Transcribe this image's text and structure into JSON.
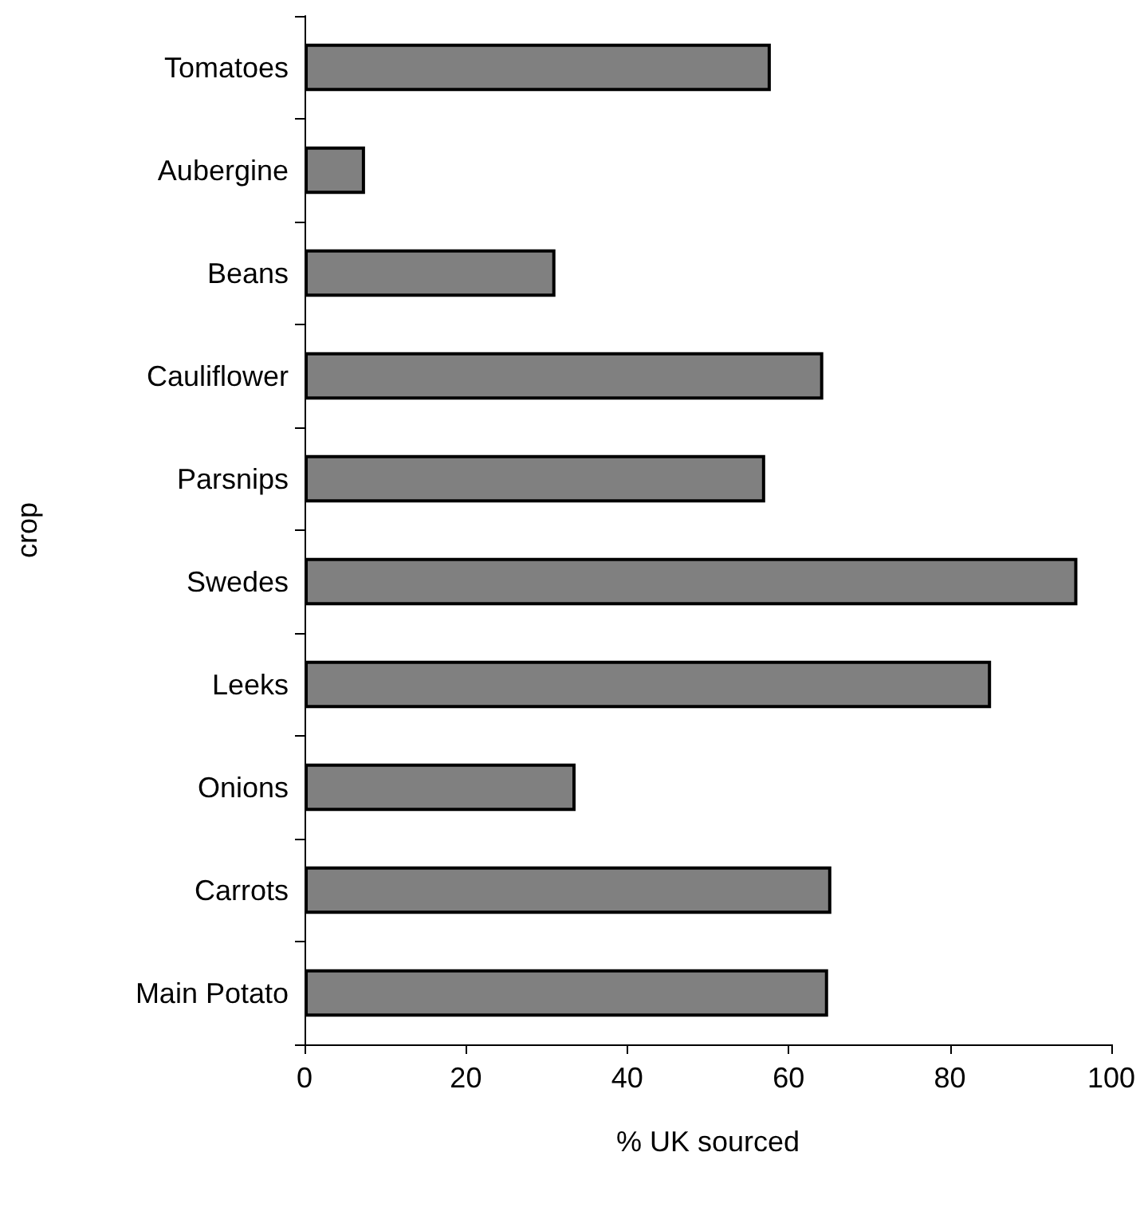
{
  "chart_data": {
    "type": "bar",
    "orientation": "horizontal",
    "xlabel": "% UK sourced",
    "ylabel": "crop",
    "categories": [
      "Tomatoes",
      "Aubergine",
      "Beans",
      "Cauliflower",
      "Parsnips",
      "Swedes",
      "Leeks",
      "Onions",
      "Carrots",
      "Main Potato"
    ],
    "values": [
      57.8,
      7.5,
      31.1,
      64.3,
      57.1,
      95.8,
      85.1,
      33.6,
      65.3,
      64.9
    ],
    "color": "#808080",
    "xlim": [
      0,
      100
    ],
    "xticks": [
      0,
      20,
      40,
      60,
      80,
      100
    ],
    "grid": false
  }
}
